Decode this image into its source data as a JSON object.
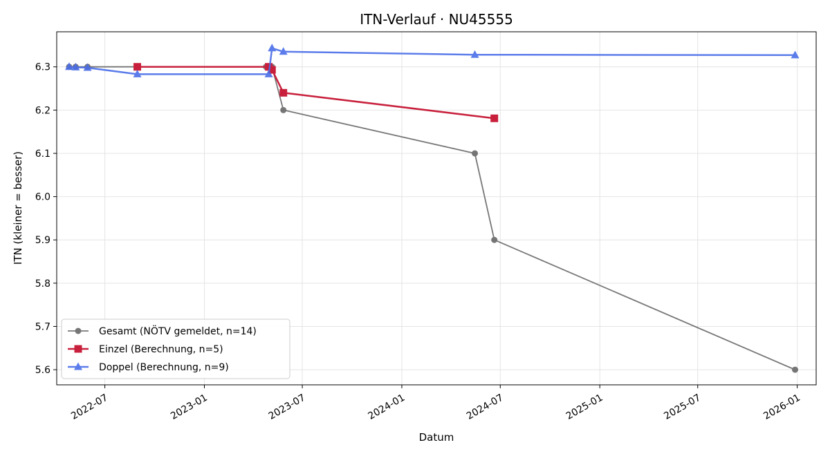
{
  "chart_data": {
    "type": "line",
    "title": "ITN-Verlauf · NU45555",
    "xlabel": "Datum",
    "ylabel": "ITN  (kleiner = besser)",
    "x_type": "date",
    "xlim": [
      "2022-04-03",
      "2026-02-05"
    ],
    "ylim": [
      5.565,
      6.381
    ],
    "x_ticks": [
      "2022-07",
      "2023-01",
      "2023-07",
      "2024-01",
      "2024-07",
      "2025-01",
      "2025-07",
      "2026-01"
    ],
    "y_ticks": [
      "5.6",
      "5.7",
      "5.8",
      "5.9",
      "6.0",
      "6.1",
      "6.2",
      "6.3"
    ],
    "grid": true,
    "legend_position": "lower-left",
    "series": [
      {
        "name": "Gesamt (NÖTV gemeldet, n=14)",
        "color": "#555555",
        "marker": "circle",
        "points": [
          {
            "x": "2022-04-26",
            "y": 6.3
          },
          {
            "x": "2022-05-08",
            "y": 6.3
          },
          {
            "x": "2022-05-30",
            "y": 6.3
          },
          {
            "x": "2022-08-30",
            "y": 6.3
          },
          {
            "x": "2023-04-25",
            "y": 6.3
          },
          {
            "x": "2023-05-03",
            "y": 6.3
          },
          {
            "x": "2023-05-06",
            "y": 6.3
          },
          {
            "x": "2023-05-27",
            "y": 6.2
          },
          {
            "x": "2024-05-15",
            "y": 6.1
          },
          {
            "x": "2024-06-20",
            "y": 5.9
          },
          {
            "x": "2025-12-28",
            "y": 5.6
          }
        ]
      },
      {
        "name": "Einzel (Berechnung, n=5)",
        "color": "#c8203c",
        "marker": "square",
        "points": [
          {
            "x": "2022-08-30",
            "y": 6.3
          },
          {
            "x": "2023-04-30",
            "y": 6.3
          },
          {
            "x": "2023-05-06",
            "y": 6.293
          },
          {
            "x": "2023-05-27",
            "y": 6.24
          },
          {
            "x": "2024-06-20",
            "y": 6.181
          }
        ]
      },
      {
        "name": "Doppel (Berechnung, n=9)",
        "color": "#4a6ee8",
        "marker": "triangle",
        "points": [
          {
            "x": "2022-04-26",
            "y": 6.3
          },
          {
            "x": "2022-05-08",
            "y": 6.299
          },
          {
            "x": "2022-05-30",
            "y": 6.298
          },
          {
            "x": "2022-08-30",
            "y": 6.283
          },
          {
            "x": "2023-04-30",
            "y": 6.283
          },
          {
            "x": "2023-05-06",
            "y": 6.343
          },
          {
            "x": "2023-05-27",
            "y": 6.335
          },
          {
            "x": "2024-05-15",
            "y": 6.328
          },
          {
            "x": "2025-12-28",
            "y": 6.327
          }
        ]
      }
    ]
  }
}
